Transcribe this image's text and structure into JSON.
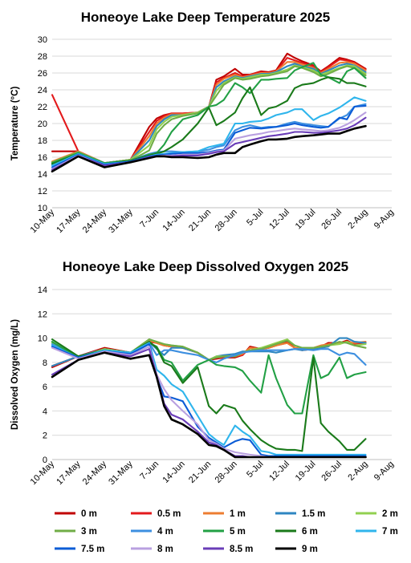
{
  "chart_data": [
    {
      "type": "line",
      "title": "Honeoye Lake Deep Temperature 2025",
      "ylabel": "Temperature (°C)",
      "xlabel": "",
      "ylim": [
        10,
        30
      ],
      "yticks": [
        10,
        12,
        14,
        16,
        18,
        20,
        22,
        24,
        26,
        28,
        30
      ],
      "xlim": [
        "10-May",
        "9-Aug"
      ],
      "xticks": [
        "10-May",
        "17-May",
        "24-May",
        "31-May",
        "7-Jun",
        "14-Jun",
        "21-Jun",
        "28-Jun",
        "5-Jul",
        "12-Jul",
        "19-Jul",
        "26-Jul",
        "2-Aug",
        "9-Aug"
      ],
      "x": [
        "10-May",
        "17-May",
        "24-May",
        "31-May",
        "5-Jun",
        "7-Jun",
        "9-Jun",
        "11-Jun",
        "14-Jun",
        "18-Jun",
        "21-Jun",
        "23-Jun",
        "25-Jun",
        "28-Jun",
        "30-Jun",
        "2-Jul",
        "5-Jul",
        "7-Jul",
        "9-Jul",
        "12-Jul",
        "14-Jul",
        "16-Jul",
        "19-Jul",
        "21-Jul",
        "23-Jul",
        "26-Jul",
        "28-Jul",
        "30-Jul",
        "2-Aug"
      ],
      "series": [
        {
          "name": "0 m",
          "values": [
            16.7,
            16.7,
            15.3,
            15.7,
            19.6,
            20.6,
            21.0,
            21.2,
            21.2,
            21.3,
            22.0,
            25.2,
            25.6,
            26.5,
            25.8,
            25.8,
            26.2,
            26.1,
            26.3,
            28.3,
            27.8,
            27.4,
            26.9,
            26.2,
            26.8,
            27.8,
            27.6,
            27.3,
            26.5
          ]
        },
        {
          "name": "0.5 m",
          "values": [
            23.4,
            16.7,
            15.3,
            15.7,
            19.0,
            20.3,
            20.9,
            21.2,
            21.2,
            21.3,
            22.0,
            24.9,
            25.4,
            26.0,
            25.6,
            25.8,
            26.1,
            26.0,
            26.2,
            27.8,
            27.5,
            27.2,
            26.8,
            26.1,
            26.7,
            27.6,
            27.5,
            27.2,
            26.4
          ]
        },
        {
          "name": "1 m",
          "values": [
            15.5,
            16.7,
            15.3,
            15.7,
            18.5,
            20.0,
            20.7,
            21.1,
            21.1,
            21.3,
            22.0,
            24.6,
            25.3,
            25.8,
            25.5,
            25.7,
            26.0,
            26.0,
            26.2,
            27.3,
            27.3,
            27.0,
            26.6,
            26.0,
            26.5,
            27.2,
            27.3,
            27.1,
            26.3
          ]
        },
        {
          "name": "1.5 m",
          "values": [
            15.3,
            16.6,
            15.3,
            15.7,
            18.0,
            19.7,
            20.5,
            21.0,
            21.0,
            21.3,
            22.0,
            24.3,
            25.0,
            25.6,
            25.4,
            25.6,
            25.9,
            25.9,
            26.1,
            26.8,
            27.1,
            26.8,
            26.5,
            25.9,
            26.3,
            26.9,
            27.1,
            26.9,
            26.1
          ]
        },
        {
          "name": "2 m",
          "values": [
            15.4,
            16.6,
            15.3,
            15.7,
            17.4,
            19.3,
            20.2,
            20.8,
            21.0,
            21.3,
            22.0,
            23.9,
            24.8,
            25.5,
            25.3,
            25.5,
            25.8,
            25.8,
            26.0,
            26.4,
            26.9,
            26.7,
            26.3,
            25.8,
            26.1,
            26.6,
            26.9,
            26.8,
            25.9
          ]
        },
        {
          "name": "3 m",
          "values": [
            15.4,
            16.6,
            15.3,
            15.6,
            16.8,
            18.8,
            19.8,
            20.5,
            20.9,
            21.2,
            22.0,
            23.3,
            24.6,
            25.4,
            25.2,
            25.3,
            25.6,
            25.7,
            25.9,
            26.2,
            26.8,
            26.6,
            26.1,
            25.6,
            25.9,
            26.5,
            26.8,
            26.6,
            25.7
          ]
        },
        {
          "name": "4 m",
          "values": [
            15.1,
            16.5,
            15.3,
            15.6,
            16.4,
            16.6,
            16.7,
            16.7,
            16.6,
            16.7,
            16.9,
            17.2,
            17.4,
            19.2,
            19.6,
            19.8,
            19.5,
            19.6,
            19.6,
            20.0,
            20.2,
            20.0,
            19.8,
            19.7,
            19.6,
            20.6,
            21.0,
            22.0,
            22.3
          ]
        },
        {
          "name": "5 m",
          "values": [
            15.3,
            16.5,
            15.3,
            15.6,
            16.3,
            16.5,
            17.5,
            19.0,
            20.5,
            21.0,
            22.0,
            22.2,
            22.8,
            24.8,
            24.3,
            23.6,
            25.2,
            25.2,
            25.3,
            25.4,
            26.3,
            26.7,
            27.2,
            25.8,
            25.5,
            24.8,
            26.2,
            26.6,
            25.4
          ]
        },
        {
          "name": "6 m",
          "values": [
            15.2,
            16.4,
            15.2,
            15.6,
            16.2,
            16.4,
            16.7,
            17.2,
            18.1,
            20.0,
            21.9,
            19.8,
            20.3,
            21.3,
            23.0,
            24.3,
            21.0,
            21.8,
            22.0,
            22.7,
            24.2,
            24.6,
            24.8,
            25.2,
            25.5,
            25.3,
            24.8,
            24.8,
            24.4
          ]
        },
        {
          "name": "7 m",
          "values": [
            15.0,
            16.4,
            15.2,
            15.5,
            16.1,
            16.3,
            16.4,
            16.5,
            16.6,
            16.7,
            17.2,
            17.4,
            17.6,
            20.0,
            20.0,
            20.2,
            20.3,
            20.6,
            21.0,
            21.3,
            21.7,
            21.7,
            20.4,
            20.9,
            21.2,
            21.9,
            22.5,
            23.1,
            22.7
          ]
        },
        {
          "name": "7.5 m",
          "values": [
            14.8,
            16.3,
            15.1,
            15.5,
            16.1,
            16.2,
            16.3,
            16.4,
            16.5,
            16.5,
            16.6,
            16.8,
            16.9,
            18.9,
            19.2,
            19.5,
            19.4,
            19.5,
            19.6,
            19.8,
            20.0,
            19.8,
            19.6,
            19.5,
            19.6,
            20.7,
            20.5,
            22.0,
            22.1
          ]
        },
        {
          "name": "8 m",
          "values": [
            14.6,
            16.2,
            15.0,
            15.4,
            16.0,
            16.1,
            16.2,
            16.2,
            16.3,
            16.3,
            16.5,
            16.7,
            16.8,
            18.2,
            18.4,
            18.6,
            18.8,
            19.0,
            19.1,
            19.3,
            19.4,
            19.3,
            19.2,
            19.1,
            19.2,
            19.5,
            19.9,
            20.4,
            21.3
          ]
        },
        {
          "name": "8.5 m",
          "values": [
            14.5,
            16.1,
            15.0,
            15.4,
            16.0,
            16.1,
            16.1,
            16.1,
            16.2,
            16.2,
            16.4,
            16.6,
            16.7,
            17.6,
            17.8,
            18.0,
            18.3,
            18.5,
            18.6,
            18.8,
            19.0,
            19.0,
            18.9,
            18.9,
            19.0,
            19.2,
            19.4,
            19.8,
            20.7
          ]
        },
        {
          "name": "9 m",
          "values": [
            14.3,
            16.1,
            14.8,
            15.4,
            15.9,
            16.1,
            16.1,
            16.0,
            16.0,
            15.9,
            16.0,
            16.3,
            16.5,
            16.5,
            17.2,
            17.5,
            17.9,
            18.1,
            18.1,
            18.2,
            18.4,
            18.5,
            18.6,
            18.7,
            18.8,
            18.8,
            19.1,
            19.4,
            19.7
          ]
        }
      ]
    },
    {
      "type": "line",
      "title": "Honeoye Lake Deep Dissolved Oxygen 2025",
      "ylabel": "Dissolved Oxygen (mg/L)",
      "xlabel": "",
      "ylim": [
        0,
        14
      ],
      "yticks": [
        0,
        2,
        4,
        6,
        8,
        10,
        12,
        14
      ],
      "xlim": [
        "10-May",
        "9-Aug"
      ],
      "xticks": [
        "10-May",
        "17-May",
        "24-May",
        "31-May",
        "7-Jun",
        "14-Jun",
        "21-Jun",
        "28-Jun",
        "5-Jul",
        "12-Jul",
        "19-Jul",
        "26-Jul",
        "2-Aug",
        "9-Aug"
      ],
      "x": [
        "10-May",
        "17-May",
        "24-May",
        "31-May",
        "5-Jun",
        "7-Jun",
        "9-Jun",
        "11-Jun",
        "14-Jun",
        "18-Jun",
        "21-Jun",
        "23-Jun",
        "25-Jun",
        "28-Jun",
        "30-Jun",
        "2-Jul",
        "5-Jul",
        "7-Jul",
        "9-Jul",
        "12-Jul",
        "14-Jul",
        "16-Jul",
        "19-Jul",
        "21-Jul",
        "23-Jul",
        "26-Jul",
        "28-Jul",
        "30-Jul",
        "2-Aug"
      ],
      "series": [
        {
          "name": "0 m",
          "values": [
            7.6,
            8.5,
            9.2,
            8.8,
            9.7,
            9.6,
            9.4,
            9.3,
            9.2,
            8.8,
            8.2,
            8.3,
            8.4,
            8.4,
            8.6,
            9.3,
            9.1,
            9.2,
            9.4,
            9.7,
            9.2,
            9.0,
            9.1,
            9.3,
            9.6,
            9.6,
            9.8,
            9.5,
            9.6
          ]
        },
        {
          "name": "0.5 m",
          "values": [
            7.7,
            8.5,
            9.1,
            8.8,
            9.8,
            9.6,
            9.4,
            9.3,
            9.2,
            8.8,
            8.2,
            8.4,
            8.4,
            8.5,
            8.6,
            9.2,
            9.1,
            9.2,
            9.4,
            9.6,
            9.2,
            9.1,
            9.1,
            9.3,
            9.5,
            9.6,
            9.7,
            9.5,
            9.6
          ]
        },
        {
          "name": "1 m",
          "values": [
            7.7,
            8.5,
            9.1,
            8.8,
            9.8,
            9.6,
            9.4,
            9.3,
            9.2,
            8.8,
            8.2,
            8.4,
            8.5,
            8.5,
            8.7,
            9.2,
            9.1,
            9.2,
            9.4,
            9.6,
            9.2,
            9.1,
            9.2,
            9.4,
            9.5,
            9.6,
            9.7,
            9.6,
            9.7
          ]
        },
        {
          "name": "1.5 m",
          "values": [
            7.7,
            8.5,
            9.1,
            8.8,
            9.7,
            9.1,
            8.6,
            9.2,
            9.2,
            8.8,
            8.2,
            8.5,
            8.6,
            8.7,
            8.9,
            8.9,
            8.9,
            8.9,
            8.8,
            9.0,
            9.1,
            9.0,
            9.1,
            9.2,
            9.3,
            10.0,
            10.0,
            9.7,
            9.6
          ]
        },
        {
          "name": "2 m",
          "values": [
            9.6,
            8.4,
            9.1,
            8.8,
            9.9,
            9.7,
            9.5,
            9.4,
            9.3,
            8.8,
            8.2,
            8.5,
            8.5,
            8.5,
            8.8,
            9.0,
            9.2,
            9.4,
            9.6,
            9.9,
            9.4,
            9.2,
            9.2,
            9.3,
            9.4,
            9.5,
            9.7,
            9.4,
            9.5
          ]
        },
        {
          "name": "3 m",
          "values": [
            9.7,
            8.4,
            9.0,
            8.8,
            9.9,
            9.7,
            9.5,
            9.4,
            9.3,
            8.8,
            8.2,
            8.4,
            8.5,
            8.5,
            8.8,
            9.0,
            9.1,
            9.3,
            9.5,
            9.8,
            9.4,
            9.2,
            9.2,
            9.3,
            9.4,
            9.7,
            9.6,
            9.4,
            9.2
          ]
        },
        {
          "name": "4 m",
          "values": [
            9.5,
            8.4,
            9.0,
            8.8,
            9.6,
            8.6,
            9.0,
            9.0,
            8.8,
            8.6,
            8.2,
            8.0,
            8.3,
            8.6,
            8.8,
            8.9,
            9.0,
            9.0,
            9.0,
            9.0,
            9.1,
            9.1,
            9.0,
            9.1,
            9.1,
            8.6,
            8.8,
            8.7,
            7.8
          ]
        },
        {
          "name": "5 m",
          "values": [
            9.7,
            8.4,
            9.0,
            8.8,
            9.6,
            9.3,
            8.2,
            8.0,
            6.5,
            7.8,
            8.2,
            7.8,
            7.7,
            7.6,
            7.3,
            6.5,
            5.5,
            8.6,
            6.7,
            4.5,
            3.8,
            3.8,
            8.6,
            6.7,
            7.0,
            8.4,
            6.7,
            7.0,
            7.2
          ]
        },
        {
          "name": "6 m",
          "values": [
            9.9,
            8.5,
            9.0,
            8.8,
            9.7,
            9.2,
            8.0,
            7.7,
            6.3,
            7.6,
            4.4,
            3.8,
            4.5,
            4.2,
            3.2,
            2.5,
            1.6,
            1.2,
            0.9,
            0.8,
            0.8,
            0.7,
            8.4,
            3.0,
            2.3,
            1.5,
            0.8,
            0.8,
            1.7
          ]
        },
        {
          "name": "7 m",
          "values": [
            9.4,
            8.4,
            9.0,
            8.8,
            9.6,
            7.4,
            6.9,
            6.2,
            5.6,
            3.6,
            2.1,
            1.6,
            1.2,
            2.8,
            2.3,
            1.9,
            0.7,
            0.6,
            0.4,
            0.4,
            0.4,
            0.4,
            0.4,
            0.4,
            0.4,
            0.4,
            0.4,
            0.4,
            0.4
          ]
        },
        {
          "name": "7.5 m",
          "values": [
            9.3,
            8.4,
            8.9,
            8.7,
            9.5,
            6.8,
            5.2,
            5.1,
            4.8,
            2.7,
            1.8,
            1.4,
            1.0,
            1.5,
            1.7,
            1.6,
            0.4,
            0.3,
            0.3,
            0.3,
            0.3,
            0.3,
            0.3,
            0.3,
            0.3,
            0.3,
            0.3,
            0.3,
            0.3
          ]
        },
        {
          "name": "8 m",
          "values": [
            9.2,
            8.3,
            8.9,
            8.6,
            9.3,
            7.0,
            5.8,
            4.9,
            4.0,
            2.9,
            1.6,
            1.3,
            0.9,
            0.6,
            0.5,
            0.4,
            0.3,
            0.2,
            0.2,
            0.2,
            0.2,
            0.2,
            0.2,
            0.2,
            0.2,
            0.2,
            0.2,
            0.2,
            0.2
          ]
        },
        {
          "name": "8.5 m",
          "values": [
            7.0,
            8.2,
            8.8,
            8.5,
            9.1,
            6.9,
            4.6,
            3.7,
            3.3,
            2.3,
            1.4,
            1.2,
            0.8,
            0.3,
            0.3,
            0.2,
            0.2,
            0.2,
            0.2,
            0.2,
            0.2,
            0.2,
            0.2,
            0.2,
            0.2,
            0.2,
            0.2,
            0.2,
            0.2
          ]
        },
        {
          "name": "9 m",
          "values": [
            6.8,
            8.2,
            8.8,
            8.3,
            8.6,
            6.8,
            4.4,
            3.3,
            2.9,
            2.1,
            1.2,
            1.1,
            0.8,
            0.2,
            0.2,
            0.2,
            0.2,
            0.2,
            0.2,
            0.2,
            0.2,
            0.2,
            0.2,
            0.2,
            0.2,
            0.2,
            0.2,
            0.2,
            0.2
          ]
        }
      ]
    }
  ],
  "legend": [
    {
      "name": "0 m",
      "color": "#c00000"
    },
    {
      "name": "0.5 m",
      "color": "#e31a1c"
    },
    {
      "name": "1 m",
      "color": "#ed7d31"
    },
    {
      "name": "1.5 m",
      "color": "#2e86c1"
    },
    {
      "name": "2 m",
      "color": "#92d050"
    },
    {
      "name": "3 m",
      "color": "#70ad47"
    },
    {
      "name": "4 m",
      "color": "#3d8fe0"
    },
    {
      "name": "5 m",
      "color": "#22a045"
    },
    {
      "name": "6 m",
      "color": "#1a7a1a"
    },
    {
      "name": "7 m",
      "color": "#2fb5ec"
    },
    {
      "name": "7.5 m",
      "color": "#0b5cd6"
    },
    {
      "name": "8 m",
      "color": "#b9a0e0"
    },
    {
      "name": "8.5 m",
      "color": "#6a3db8"
    },
    {
      "name": "9 m",
      "color": "#000000"
    }
  ]
}
